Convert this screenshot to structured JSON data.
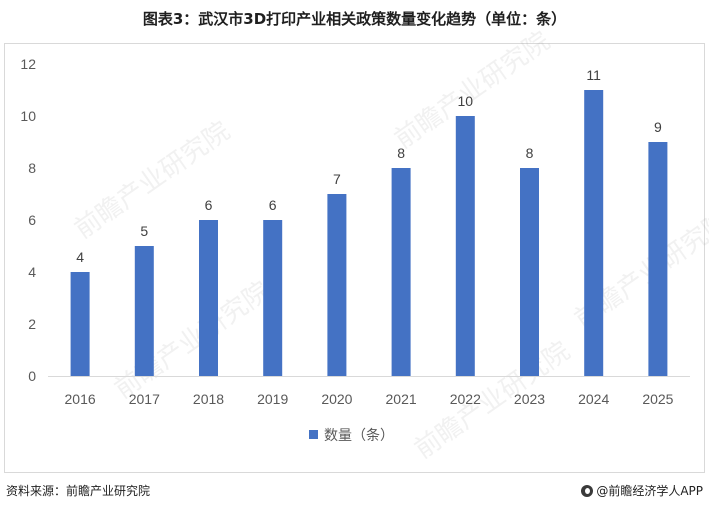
{
  "title": "图表3：武汉市3D打印产业相关政策数量变化趋势（单位：条）",
  "footer": {
    "source": "资料来源：前瞻产业研究院",
    "brand": "@前瞻经济学人APP"
  },
  "watermark": "前瞻产业研究院",
  "chart_data": {
    "type": "bar",
    "categories": [
      "2016",
      "2017",
      "2018",
      "2019",
      "2020",
      "2021",
      "2022",
      "2023",
      "2024",
      "2025"
    ],
    "series": [
      {
        "name": "数量（条）",
        "values": [
          4,
          5,
          6,
          6,
          7,
          8,
          10,
          8,
          11,
          9
        ]
      }
    ],
    "ylim": [
      0,
      12
    ],
    "yticks": [
      0,
      2,
      4,
      6,
      8,
      10,
      12
    ],
    "legend_position": "bottom",
    "grid": false,
    "bar_color": "#4472C4"
  }
}
